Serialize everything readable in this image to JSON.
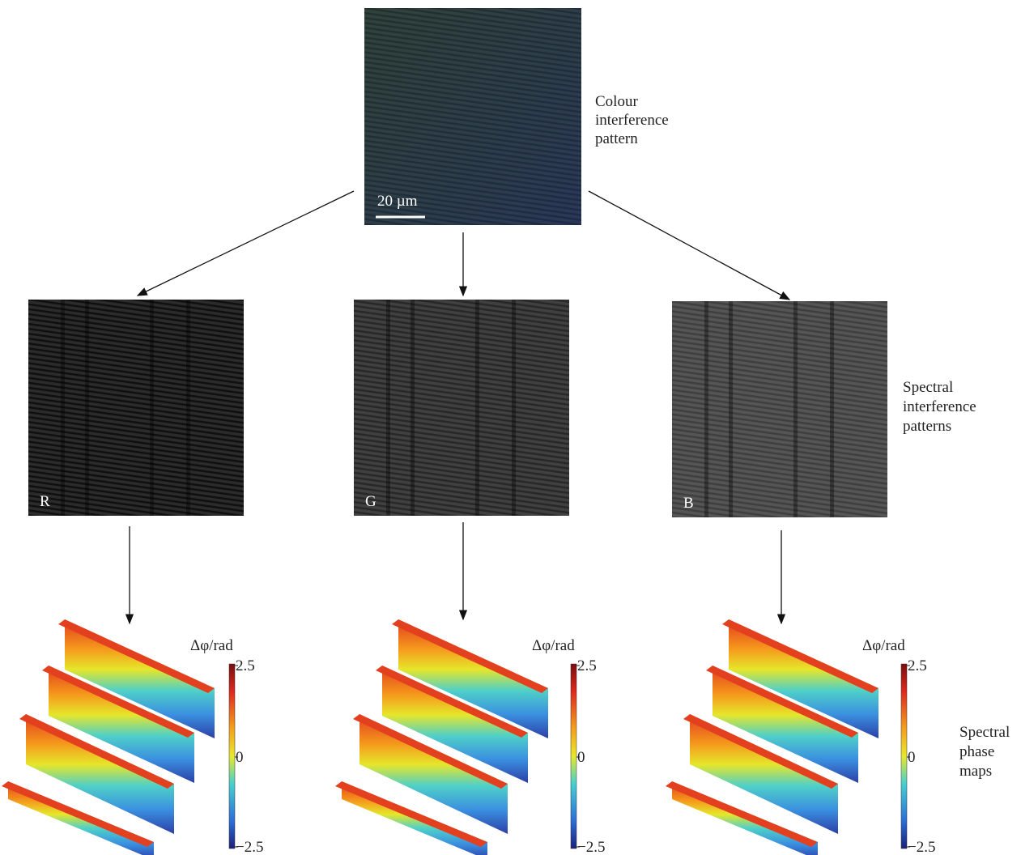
{
  "top_image": {
    "caption_lines": [
      "Colour",
      "interference",
      "pattern"
    ],
    "scale_bar": "20 µm"
  },
  "channels": {
    "labels": [
      "R",
      "G",
      "B"
    ],
    "caption_lines": [
      "Spectral",
      "interference",
      "patterns"
    ]
  },
  "phase_maps": {
    "colorbar_label": "Δφ/rad",
    "colorbar_ticks": [
      "2.5",
      "0",
      "−2.5"
    ],
    "caption_lines": [
      "Spectral",
      "phase",
      "maps"
    ]
  }
}
